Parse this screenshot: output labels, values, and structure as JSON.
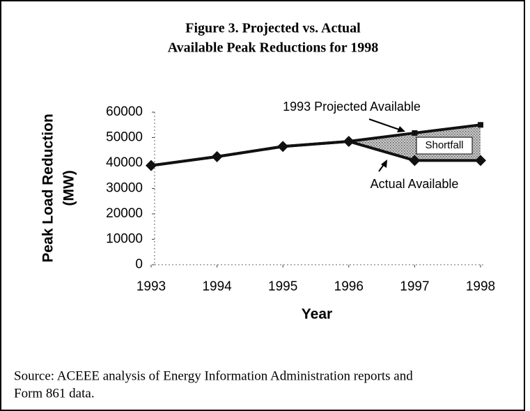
{
  "chart_data": {
    "type": "line",
    "title": "Figure 3. Projected vs. Actual",
    "subtitle": "Available Peak Reductions for 1998",
    "x_label": "Year",
    "y_label": "Peak Load Reduction",
    "y_label_unit": "(MW)",
    "x": [
      1993,
      1994,
      1995,
      1996,
      1997,
      1998
    ],
    "xlim": [
      1993,
      1998
    ],
    "xticks": [
      1993,
      1994,
      1995,
      1996,
      1997,
      1998
    ],
    "ylim": [
      0,
      60000
    ],
    "yticks": [
      0,
      10000,
      20000,
      30000,
      40000,
      50000,
      60000
    ],
    "series": [
      {
        "name": "1993 Projected Available",
        "color": "#111111",
        "values": [
          39000,
          42500,
          46500,
          48500,
          51800,
          55000
        ]
      },
      {
        "name": "Actual Available",
        "color": "#111111",
        "values": [
          39000,
          42500,
          46500,
          48500,
          41000,
          41000
        ]
      }
    ],
    "annotations": [
      "Shortfall"
    ],
    "source": [
      "Source: ACEEE analysis of Energy Information Administration reports and",
      "Form 861 data."
    ]
  }
}
